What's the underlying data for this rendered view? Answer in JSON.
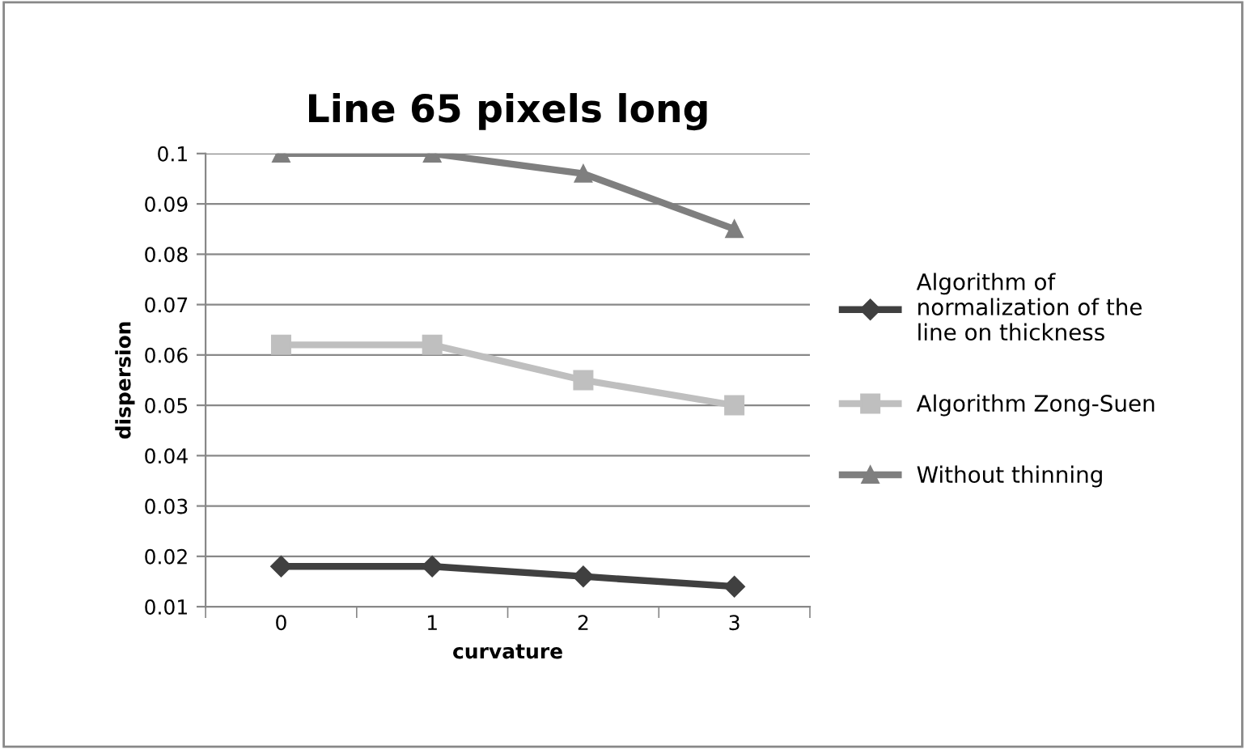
{
  "chart_data": {
    "type": "line",
    "title": "Line 65 pixels long",
    "xlabel": "curvature",
    "ylabel": "dispersion",
    "categories": [
      "0",
      "1",
      "2",
      "3"
    ],
    "series": [
      {
        "name": "Algorithm of normalization of the line on thickness",
        "color": "#404040",
        "marker": "diamond",
        "values": [
          0.018,
          0.018,
          0.016,
          0.014
        ]
      },
      {
        "name": "Algorithm Zong-Suen",
        "color": "#bfbfbf",
        "marker": "square",
        "values": [
          0.062,
          0.062,
          0.055,
          0.05
        ]
      },
      {
        "name": "Without thinning",
        "color": "#7f7f7f",
        "marker": "triangle",
        "values": [
          0.1,
          0.1,
          0.096,
          0.085
        ]
      }
    ],
    "ylim": [
      0.01,
      0.1
    ],
    "yticks": [
      0.01,
      0.02,
      0.03,
      0.04,
      0.05,
      0.06,
      0.07,
      0.08,
      0.09,
      0.1
    ],
    "grid": "y",
    "legend": "right"
  }
}
